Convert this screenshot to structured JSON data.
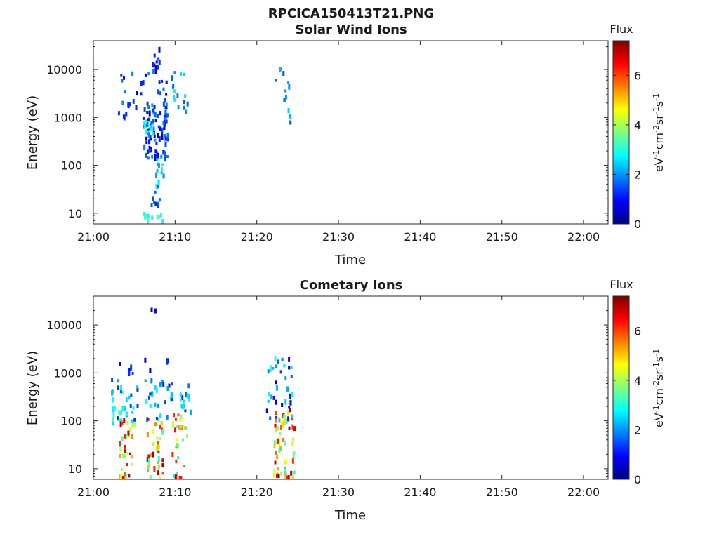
{
  "figure": {
    "title": "RPCICA150413T21.PNG"
  },
  "colormap": [
    "#00007f",
    "#0000ff",
    "#007fff",
    "#00ffff",
    "#7fff7f",
    "#ffff00",
    "#ff7f00",
    "#ff0000",
    "#7f0000"
  ],
  "chart_data": [
    {
      "type": "heatmap",
      "title": "Solar Wind Ions",
      "xlabel": "Time",
      "ylabel": "Energy (eV)",
      "x_range": [
        "21:00",
        "22:03"
      ],
      "x_ticks": [
        "21:00",
        "21:10",
        "21:20",
        "21:30",
        "21:40",
        "21:50",
        "22:00"
      ],
      "y_scale": "log",
      "y_range": [
        6,
        40000
      ],
      "y_ticks": [
        "10",
        "100",
        "1000",
        "10000"
      ],
      "colorbar": {
        "label": "Flux",
        "unit": "eV-1cm-2sr-1s-1",
        "range": [
          0,
          7.4
        ],
        "ticks": [
          "0",
          "2",
          "4",
          "6"
        ]
      },
      "blobs": [
        {
          "t": [
            21.03,
            21.04
          ],
          "e": [
            1000,
            1500
          ],
          "v": [
            1,
            2
          ],
          "n": 4
        },
        {
          "t": [
            21.03,
            21.09
          ],
          "e": [
            1800,
            12000
          ],
          "v": [
            0.8,
            2
          ],
          "n": 30
        },
        {
          "t": [
            21.06,
            21.09
          ],
          "e": [
            150,
            2500
          ],
          "v": [
            0.5,
            2
          ],
          "n": 90
        },
        {
          "t": [
            21.07,
            21.08
          ],
          "e": [
            12000,
            38000
          ],
          "v": [
            0.6,
            1.5
          ],
          "n": 10
        },
        {
          "t": [
            21.06,
            21.075
          ],
          "e": [
            500,
            900
          ],
          "v": [
            2.6,
            3
          ],
          "n": 8
        },
        {
          "t": [
            21.07,
            21.085
          ],
          "e": [
            40,
            150
          ],
          "v": [
            2,
            3
          ],
          "n": 14
        },
        {
          "t": [
            21.07,
            21.08
          ],
          "e": [
            15,
            40
          ],
          "v": [
            1,
            2
          ],
          "n": 10
        },
        {
          "t": [
            21.06,
            21.085
          ],
          "e": [
            6,
            11
          ],
          "v": [
            2.8,
            3.6
          ],
          "n": 12
        },
        {
          "t": [
            21.095,
            21.115
          ],
          "e": [
            1200,
            11000
          ],
          "v": [
            1.5,
            2.8
          ],
          "n": 16
        },
        {
          "t": [
            21.22,
            21.24
          ],
          "e": [
            700,
            14000
          ],
          "v": [
            1.2,
            2.6
          ],
          "n": 14
        }
      ]
    },
    {
      "type": "heatmap",
      "title": "Cometary Ions",
      "xlabel": "Time",
      "ylabel": "Energy (eV)",
      "x_range": [
        "21:00",
        "22:03"
      ],
      "x_ticks": [
        "21:00",
        "21:10",
        "21:20",
        "21:30",
        "21:40",
        "21:50",
        "22:00"
      ],
      "y_scale": "log",
      "y_range": [
        6,
        40000
      ],
      "y_ticks": [
        "10",
        "100",
        "1000",
        "10000"
      ],
      "colorbar": {
        "label": "Flux",
        "unit": "eV-1cm-2sr-1s-1",
        "range": [
          0,
          7.4
        ],
        "ticks": [
          "0",
          "2",
          "4",
          "6"
        ]
      },
      "blobs": [
        {
          "t": [
            21.07,
            21.08
          ],
          "e": [
            14000,
            23000
          ],
          "v": [
            0.3,
            1
          ],
          "n": 2
        },
        {
          "t": [
            21.03,
            21.1
          ],
          "e": [
            500,
            2500
          ],
          "v": [
            0.5,
            1.5
          ],
          "n": 12
        },
        {
          "t": [
            21.02,
            21.12
          ],
          "e": [
            100,
            800
          ],
          "v": [
            1,
            3
          ],
          "n": 70
        },
        {
          "t": [
            21.03,
            21.05
          ],
          "e": [
            6,
            120
          ],
          "v": [
            3,
            7.3
          ],
          "n": 38
        },
        {
          "t": [
            21.065,
            21.085
          ],
          "e": [
            6,
            120
          ],
          "v": [
            3,
            7.3
          ],
          "n": 38
        },
        {
          "t": [
            21.095,
            21.115
          ],
          "e": [
            6,
            150
          ],
          "v": [
            2.8,
            6.5
          ],
          "n": 30
        },
        {
          "t": [
            21.02,
            21.04
          ],
          "e": [
            100,
            250
          ],
          "v": [
            2.6,
            3.4
          ],
          "n": 8
        },
        {
          "t": [
            21.21,
            21.245
          ],
          "e": [
            100,
            2500
          ],
          "v": [
            0.5,
            3
          ],
          "n": 36
        },
        {
          "t": [
            21.22,
            21.245
          ],
          "e": [
            6,
            200
          ],
          "v": [
            3,
            7.4
          ],
          "n": 60
        }
      ]
    }
  ]
}
